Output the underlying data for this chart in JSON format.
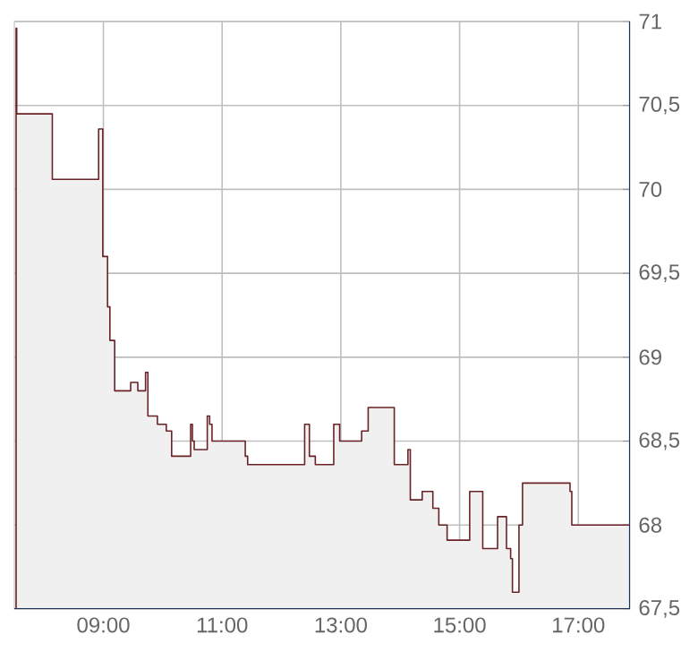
{
  "chart_data": {
    "type": "area",
    "series": [
      {
        "color": "#6b2226",
        "x": [
          7.53,
          7.54,
          8.14,
          8.92,
          8.99,
          9.07,
          9.11,
          9.19,
          9.46,
          9.58,
          9.71,
          9.75,
          9.91,
          10.06,
          10.15,
          10.47,
          10.5,
          10.53,
          10.75,
          10.79,
          10.83,
          11.39,
          11.43,
          12.39,
          12.47,
          12.57,
          12.88,
          12.98,
          13.35,
          13.46,
          13.9,
          14.13,
          14.17,
          14.37,
          14.55,
          14.65,
          14.79,
          15.17,
          15.39,
          15.64,
          15.79,
          15.86,
          15.89,
          16.0,
          16.06,
          16.86,
          16.89,
          17.87
        ],
        "values": [
          70.96,
          70.45,
          70.06,
          70.36,
          69.6,
          69.3,
          69.1,
          68.8,
          68.85,
          68.8,
          68.91,
          68.65,
          68.6,
          68.56,
          68.41,
          68.6,
          68.5,
          68.45,
          68.65,
          68.6,
          68.5,
          68.41,
          68.36,
          68.6,
          68.41,
          68.36,
          68.6,
          68.5,
          68.56,
          68.7,
          68.36,
          68.45,
          68.15,
          68.2,
          68.1,
          68.0,
          67.91,
          68.2,
          67.86,
          68.05,
          67.86,
          67.8,
          67.6,
          68.0,
          68.25,
          68.2,
          68.0,
          68.0
        ]
      }
    ],
    "xlim": [
      7.5,
      17.87
    ],
    "xticks": [
      {
        "value": 9,
        "label": "09:00"
      },
      {
        "value": 11,
        "label": "11:00"
      },
      {
        "value": 13,
        "label": "13:00"
      },
      {
        "value": 15,
        "label": "15:00"
      },
      {
        "value": 17,
        "label": "17:00"
      }
    ],
    "ylim": [
      67.5,
      71
    ],
    "yticks": [
      {
        "value": 67.5,
        "label": "67,5"
      },
      68,
      {
        "value": 68.5,
        "label": "68,5"
      },
      69,
      {
        "value": 69.5,
        "label": "69,5"
      },
      70,
      {
        "value": 70.5,
        "label": "70,5"
      },
      71
    ],
    "grid": true
  }
}
